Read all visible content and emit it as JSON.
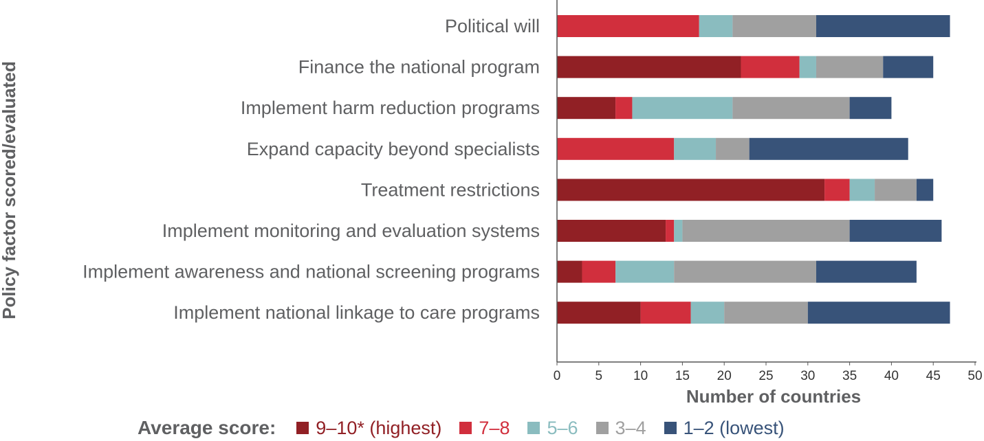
{
  "chart_data": {
    "type": "bar",
    "orientation": "horizontal",
    "stacked": true,
    "categories": [
      "Political will",
      "Finance the national program",
      "Implement harm reduction programs",
      "Expand capacity beyond specialists",
      "Treatment restrictions",
      "Implement monitoring and evaluation systems",
      "Implement awareness and national screening programs",
      "Implement national linkage to care programs"
    ],
    "series": [
      {
        "name": "9–10* (highest)",
        "color": "#912025",
        "values": [
          0,
          22,
          7,
          0,
          32,
          13,
          3,
          10
        ]
      },
      {
        "name": "7–8",
        "color": "#d12f3d",
        "values": [
          17,
          7,
          2,
          14,
          3,
          1,
          4,
          6
        ]
      },
      {
        "name": "5–6",
        "color": "#8abcbf",
        "values": [
          4,
          2,
          12,
          5,
          3,
          1,
          7,
          4
        ]
      },
      {
        "name": "3–4",
        "color": "#a0a0a0",
        "values": [
          10,
          8,
          14,
          4,
          5,
          20,
          17,
          10
        ]
      },
      {
        "name": "1–2 (lowest)",
        "color": "#385379",
        "values": [
          16,
          6,
          5,
          19,
          2,
          11,
          12,
          17
        ]
      }
    ],
    "xlabel": "Number of countries",
    "ylabel": "Policy factor scored/evaluated",
    "xlim": [
      0,
      50
    ],
    "xticks": [
      "0",
      "5",
      "10",
      "15",
      "20",
      "25",
      "30",
      "35",
      "40",
      "45",
      "50"
    ],
    "grid": false,
    "legend": {
      "title": "Average score:",
      "placement": "bottom"
    }
  }
}
